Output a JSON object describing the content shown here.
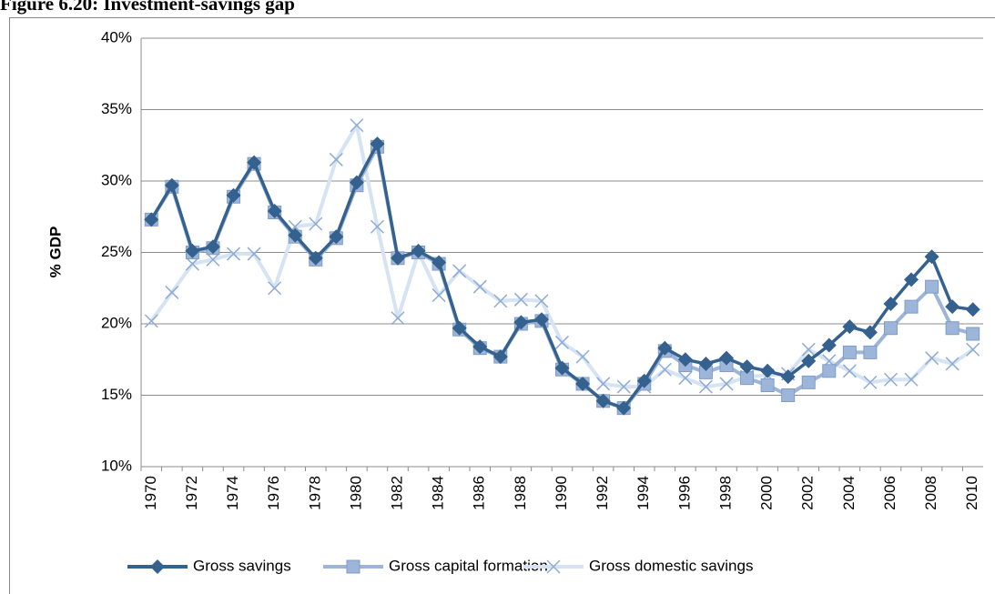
{
  "chart_data": {
    "type": "line",
    "title": "Figure 6.20: Investment-savings gap",
    "y_label": "% GDP",
    "categories": [
      "1970",
      null,
      "1972",
      null,
      "1974",
      null,
      "1976",
      null,
      "1978",
      null,
      "1980",
      null,
      "1982",
      null,
      "1984",
      null,
      "1986",
      null,
      "1988",
      null,
      "1990",
      null,
      "1992",
      null,
      "1994",
      null,
      "1996",
      null,
      "1998",
      null,
      "2000",
      null,
      "2002",
      null,
      "2004",
      null,
      "2006",
      null,
      "2008",
      null,
      "2010"
    ],
    "series": [
      {
        "name": "Gross savings",
        "color": "#35618f",
        "marker": "diamond",
        "values": [
          27.3,
          29.7,
          25.1,
          25.4,
          29.0,
          31.3,
          27.9,
          26.2,
          24.6,
          26.1,
          29.9,
          32.6,
          24.6,
          25.1,
          24.3,
          19.7,
          18.4,
          17.7,
          20.1,
          20.3,
          16.9,
          15.8,
          14.6,
          14.1,
          16.0,
          18.3,
          17.5,
          17.2,
          17.6,
          17.0,
          16.7,
          16.3,
          17.4,
          18.5,
          19.8,
          19.4,
          21.4,
          23.1,
          24.7,
          21.2,
          21.0
        ]
      },
      {
        "name": "Gross capital formation",
        "color": "#9db5d8",
        "marker": "square",
        "values": [
          27.3,
          29.6,
          25.0,
          25.3,
          28.9,
          31.2,
          27.8,
          26.1,
          24.5,
          26.0,
          29.7,
          32.4,
          24.6,
          25.0,
          24.2,
          19.6,
          18.3,
          17.7,
          20.0,
          20.2,
          16.8,
          15.8,
          14.6,
          14.1,
          15.8,
          18.1,
          17.1,
          16.6,
          17.1,
          16.2,
          15.7,
          15.0,
          15.9,
          16.7,
          18.0,
          18.0,
          19.7,
          21.2,
          22.6,
          19.7,
          19.3
        ]
      },
      {
        "name": "Gross domestic savings",
        "color": "#d6e3f3",
        "marker": "x",
        "values": [
          20.2,
          22.2,
          24.2,
          24.5,
          24.9,
          24.9,
          22.5,
          26.8,
          27.0,
          31.5,
          33.9,
          26.8,
          20.4,
          25.0,
          22.0,
          23.7,
          22.6,
          21.6,
          21.7,
          21.6,
          18.7,
          17.7,
          15.8,
          15.6,
          15.6,
          16.8,
          16.2,
          15.6,
          15.8,
          16.3,
          16.4,
          16.5,
          18.2,
          17.4,
          16.7,
          15.9,
          16.1,
          16.1,
          17.6,
          17.2,
          18.2
        ]
      }
    ],
    "ylim": [
      10,
      40
    ],
    "yticks": [
      {
        "value": 10,
        "label": "10%"
      },
      {
        "value": 15,
        "label": "15%"
      },
      {
        "value": 20,
        "label": "20%"
      },
      {
        "value": 25,
        "label": "25%"
      },
      {
        "value": 30,
        "label": "30%"
      },
      {
        "value": 35,
        "label": "35%"
      },
      {
        "value": 40,
        "label": "40%"
      }
    ],
    "grid": true,
    "legend": "bottom"
  }
}
